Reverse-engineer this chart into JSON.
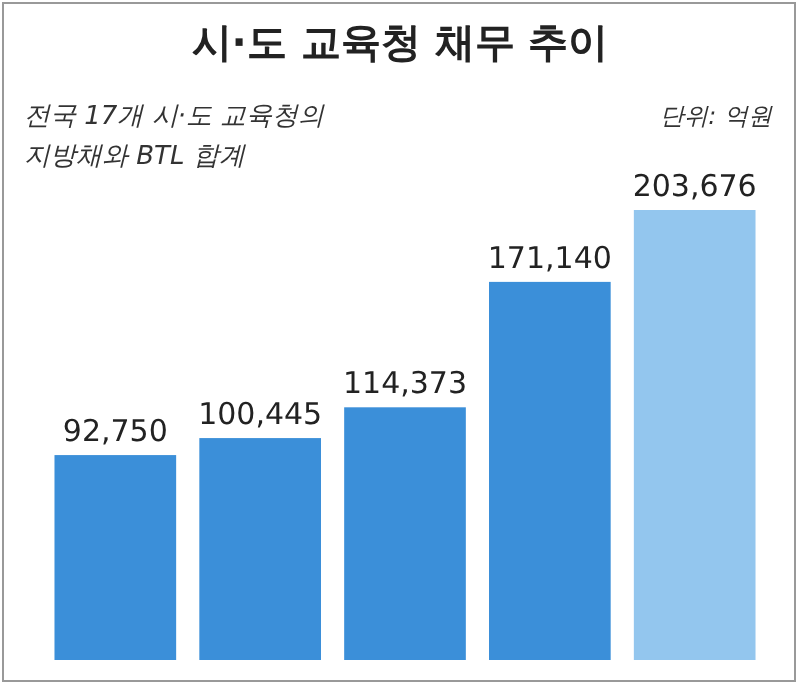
{
  "chart_data": {
    "type": "bar",
    "title": "시·도 교육청 채무 추이",
    "subtitle": "전국 17개 시·도 교육청의 지방채와 BTL 합계",
    "annotations": [
      "단위: 억원"
    ],
    "categories": [
      null,
      null,
      null,
      null,
      null
    ],
    "values": [
      92750,
      100445,
      114373,
      171140,
      203676
    ],
    "colors": [
      "#3b8fd9",
      "#3b8fd9",
      "#3b8fd9",
      "#3b8fd9",
      "#93c6ee"
    ],
    "value_labels": [
      "92,750",
      "100,445",
      "114,373",
      "171,140",
      "203,676"
    ]
  }
}
